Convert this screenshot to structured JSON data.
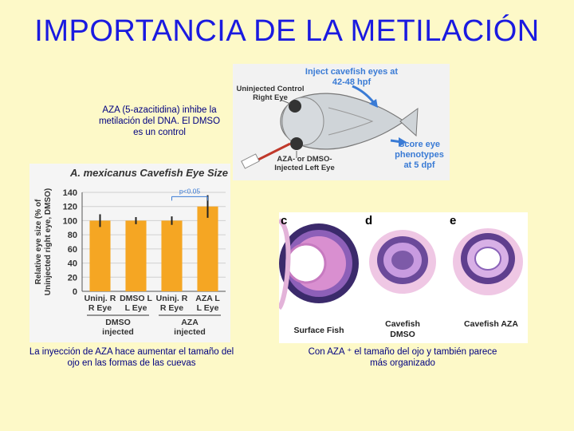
{
  "title": "IMPORTANCIA DE LA METILACIÓN",
  "captions": {
    "aza_note": "AZA (5-azacitidina) inhibe la metilación del DNA. El DMSO es un control",
    "left_bottom": "La inyección de AZA hace aumentar el tamaño del ojo en las formas de las cuevas",
    "right_bottom": "Con AZA ⁺ el tamaño del ojo y también parece más organizado"
  },
  "diagram": {
    "inject_title": "Inject cavefish eyes at 42-48 hpf",
    "uninjected": "Uninjected Control Right Eye",
    "injected": "AZA- or DMSO- Injected Left Eye",
    "score": "Score eye phenotypes at 5 dpf"
  },
  "histology": {
    "letters": [
      "c",
      "d",
      "e"
    ],
    "labels": [
      "Surface Fish",
      "Cavefish DMSO",
      "Cavefish AZA"
    ]
  },
  "chart_data": {
    "type": "bar",
    "title": "A. mexicanus Cavefish Eye Size",
    "ylabel": "Relative eye size (% of Uninjected right eye, DMSO)",
    "categories": [
      "Uninj. R Eye",
      "DMSO L Eye",
      "Uninj. R Eye",
      "AZA L Eye"
    ],
    "values": [
      100,
      100,
      100,
      120
    ],
    "errors": [
      9,
      5,
      6,
      16
    ],
    "groups": [
      "DMSO injected",
      "AZA injected"
    ],
    "annotation": "p<0.05",
    "ylim": [
      0,
      140
    ],
    "yticks": [
      0,
      20,
      40,
      60,
      80,
      100,
      120,
      140
    ],
    "bar_color": "#f5a623",
    "grid": true
  }
}
